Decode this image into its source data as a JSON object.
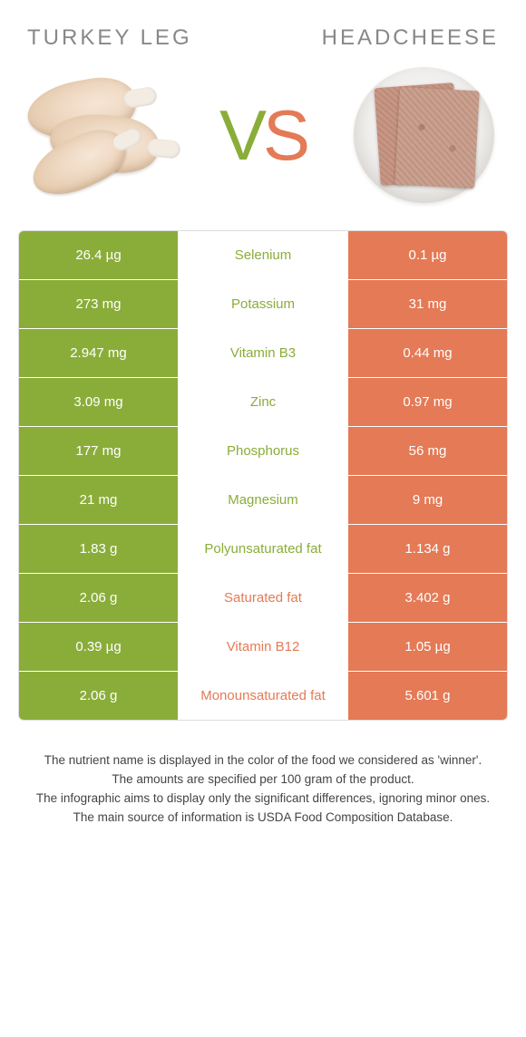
{
  "colors": {
    "left": "#8aad3a",
    "right": "#e47a56",
    "row_border": "rgba(255,255,255,0.4)"
  },
  "header": {
    "left_title": "Turkey leg",
    "right_title": "Headcheese",
    "vs_v": "V",
    "vs_s": "S"
  },
  "rows": [
    {
      "nutrient": "Selenium",
      "left": "26.4 µg",
      "right": "0.1 µg",
      "winner": "left"
    },
    {
      "nutrient": "Potassium",
      "left": "273 mg",
      "right": "31 mg",
      "winner": "left"
    },
    {
      "nutrient": "Vitamin B3",
      "left": "2.947 mg",
      "right": "0.44 mg",
      "winner": "left"
    },
    {
      "nutrient": "Zinc",
      "left": "3.09 mg",
      "right": "0.97 mg",
      "winner": "left"
    },
    {
      "nutrient": "Phosphorus",
      "left": "177 mg",
      "right": "56 mg",
      "winner": "left"
    },
    {
      "nutrient": "Magnesium",
      "left": "21 mg",
      "right": "9 mg",
      "winner": "left"
    },
    {
      "nutrient": "Polyunsaturated fat",
      "left": "1.83 g",
      "right": "1.134 g",
      "winner": "left"
    },
    {
      "nutrient": "Saturated fat",
      "left": "2.06 g",
      "right": "3.402 g",
      "winner": "right"
    },
    {
      "nutrient": "Vitamin B12",
      "left": "0.39 µg",
      "right": "1.05 µg",
      "winner": "right"
    },
    {
      "nutrient": "Monounsaturated fat",
      "left": "2.06 g",
      "right": "5.601 g",
      "winner": "right"
    }
  ],
  "footer": {
    "line1": "The nutrient name is displayed in the color of the food we considered as 'winner'.",
    "line2": "The amounts are specified per 100 gram of the product.",
    "line3": "The infographic aims to display only the significant differences, ignoring minor ones.",
    "line4": "The main source of information is USDA Food Composition Database."
  }
}
